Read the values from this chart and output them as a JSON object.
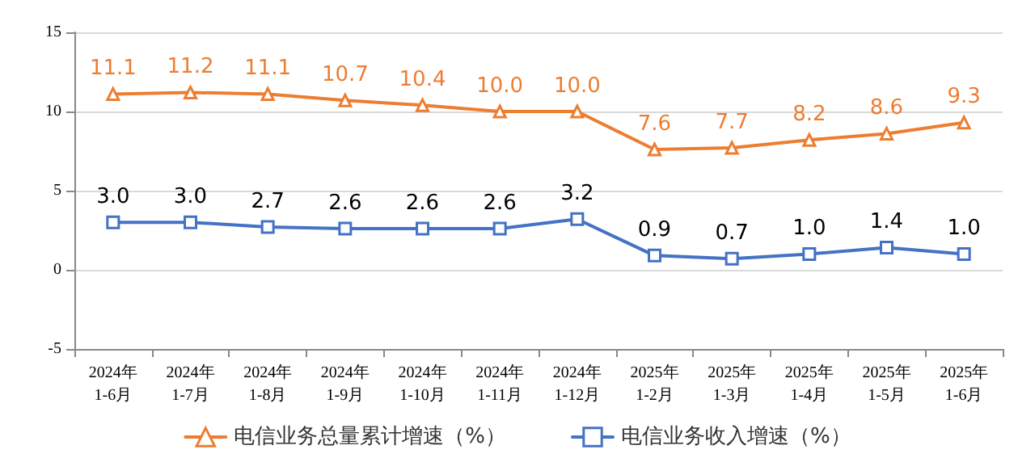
{
  "chart_data": {
    "type": "line",
    "categories": [
      "2024年\n1-6月",
      "2024年\n1-7月",
      "2024年\n1-8月",
      "2024年\n1-9月",
      "2024年\n1-10月",
      "2024年\n1-11月",
      "2024年\n1-12月",
      "2025年\n1-2月",
      "2025年\n1-3月",
      "2025年\n1-4月",
      "2025年\n1-5月",
      "2025年\n1-6月"
    ],
    "series": [
      {
        "name": "电信业务总量累计增速（%）",
        "color": "#ed7d31",
        "marker": "triangle",
        "values": [
          11.1,
          11.2,
          11.1,
          10.7,
          10.4,
          10.0,
          10.0,
          7.6,
          7.7,
          8.2,
          8.6,
          9.3
        ],
        "value_labels": [
          "11.1",
          "11.2",
          "11.1",
          "10.7",
          "10.4",
          "10.0",
          "10.0",
          "7.6",
          "7.7",
          "8.2",
          "8.6",
          "9.3"
        ]
      },
      {
        "name": "电信业务收入增速（%）",
        "color": "#4472c4",
        "marker": "square",
        "values": [
          3.0,
          3.0,
          2.7,
          2.6,
          2.6,
          2.6,
          3.2,
          0.9,
          0.7,
          1.0,
          1.4,
          1.0
        ],
        "value_labels": [
          "3.0",
          "3.0",
          "2.7",
          "2.6",
          "2.6",
          "2.6",
          "3.2",
          "0.9",
          "0.7",
          "1.0",
          "1.4",
          "1.0"
        ]
      }
    ],
    "ylim": [
      -5,
      15
    ],
    "yticks": [
      -5,
      0,
      5,
      10,
      15
    ],
    "grid": "y",
    "legend": "bottom",
    "line_style": "solid"
  }
}
